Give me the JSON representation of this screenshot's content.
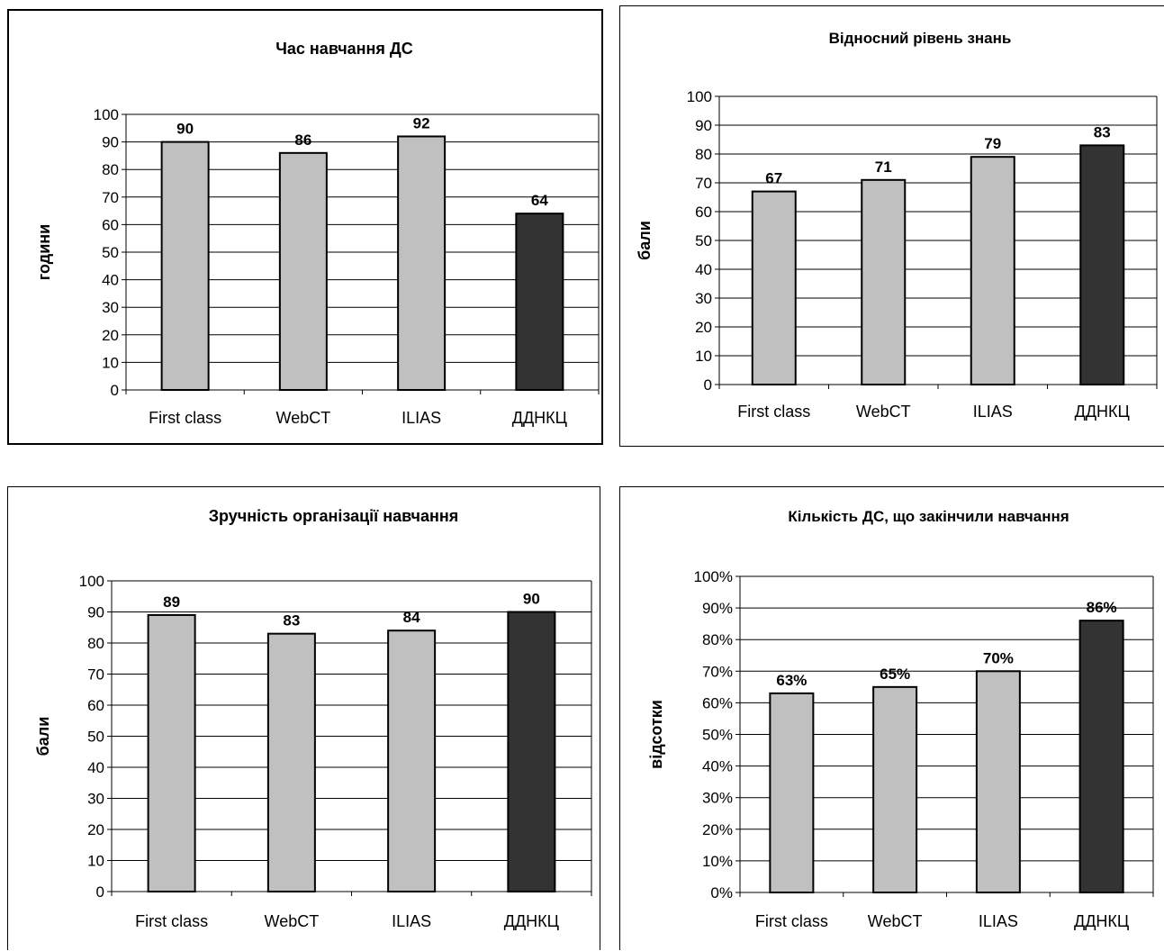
{
  "colors": {
    "light_bar": "#c0c0c0",
    "dark_bar": "#333333",
    "frame": "#000000"
  },
  "chart_data": [
    {
      "type": "bar",
      "title": "Час навчання ДС",
      "ylabel": "години",
      "xlabel": "",
      "categories": [
        "First class",
        "WebCT",
        "ILIAS",
        "ДДНКЦ"
      ],
      "values": [
        90,
        86,
        92,
        64
      ],
      "data_labels": [
        "90",
        "86",
        "92",
        "64"
      ],
      "ylim": [
        0,
        100
      ],
      "yticks": [
        "0",
        "10",
        "20",
        "30",
        "40",
        "50",
        "60",
        "70",
        "80",
        "90",
        "100"
      ],
      "grid": true,
      "highlight_index": 3
    },
    {
      "type": "bar",
      "title": "Відносний рівень знань",
      "ylabel": "бали",
      "xlabel": "",
      "categories": [
        "First class",
        "WebCT",
        "ILIAS",
        "ДДНКЦ"
      ],
      "values": [
        67,
        71,
        79,
        83
      ],
      "data_labels": [
        "67",
        "71",
        "79",
        "83"
      ],
      "ylim": [
        0,
        100
      ],
      "yticks": [
        "0",
        "10",
        "20",
        "30",
        "40",
        "50",
        "60",
        "70",
        "80",
        "90",
        "100"
      ],
      "grid": true,
      "highlight_index": 3
    },
    {
      "type": "bar",
      "title": "Зручність організації навчання",
      "ylabel": "бали",
      "xlabel": "",
      "categories": [
        "First class",
        "WebCT",
        "ILIAS",
        "ДДНКЦ"
      ],
      "values": [
        89,
        83,
        84,
        90
      ],
      "data_labels": [
        "89",
        "83",
        "84",
        "90"
      ],
      "ylim": [
        0,
        100
      ],
      "yticks": [
        "0",
        "10",
        "20",
        "30",
        "40",
        "50",
        "60",
        "70",
        "80",
        "90",
        "100"
      ],
      "grid": true,
      "highlight_index": 3
    },
    {
      "type": "bar",
      "title": "Кількість ДС, що закінчили навчання",
      "ylabel": "відсотки",
      "xlabel": "",
      "categories": [
        "First class",
        "WebCT",
        "ILIAS",
        "ДДНКЦ"
      ],
      "values": [
        63,
        65,
        70,
        86
      ],
      "data_labels": [
        "63%",
        "65%",
        "70%",
        "86%"
      ],
      "ylim": [
        0,
        100
      ],
      "yticks": [
        "0%",
        "10%",
        "20%",
        "30%",
        "40%",
        "50%",
        "60%",
        "70%",
        "80%",
        "90%",
        "100%"
      ],
      "grid": true,
      "highlight_index": 3
    }
  ]
}
